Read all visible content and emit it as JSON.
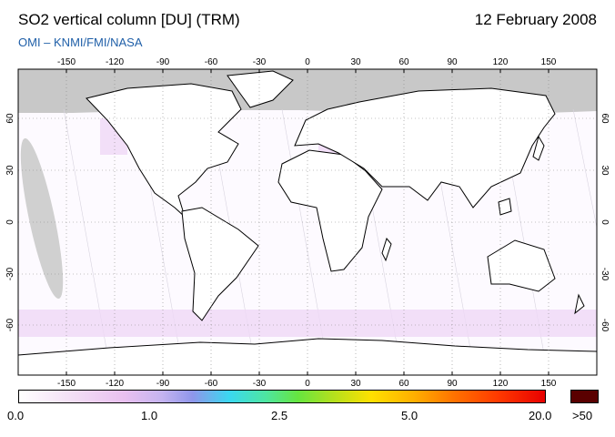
{
  "header": {
    "title": "SO2 vertical column [DU] (TRM)",
    "date": "12 February 2008",
    "credit": "OMI  –  KNMI/FMI/NASA"
  },
  "map": {
    "lon_ticks": [
      "-150",
      "-120",
      "-90",
      "-60",
      "-30",
      "0",
      "30",
      "60",
      "90",
      "120",
      "150"
    ],
    "lat_ticks": [
      "60",
      "30",
      "0",
      "-30",
      "-60"
    ],
    "land_color": "#ffffff",
    "no_data_color": "#c8c8c8",
    "coast_color": "#000000"
  },
  "colorbar": {
    "labels": [
      "0.0",
      "1.0",
      "2.5",
      "5.0",
      "20.0"
    ],
    "overflow_label": ">50"
  }
}
